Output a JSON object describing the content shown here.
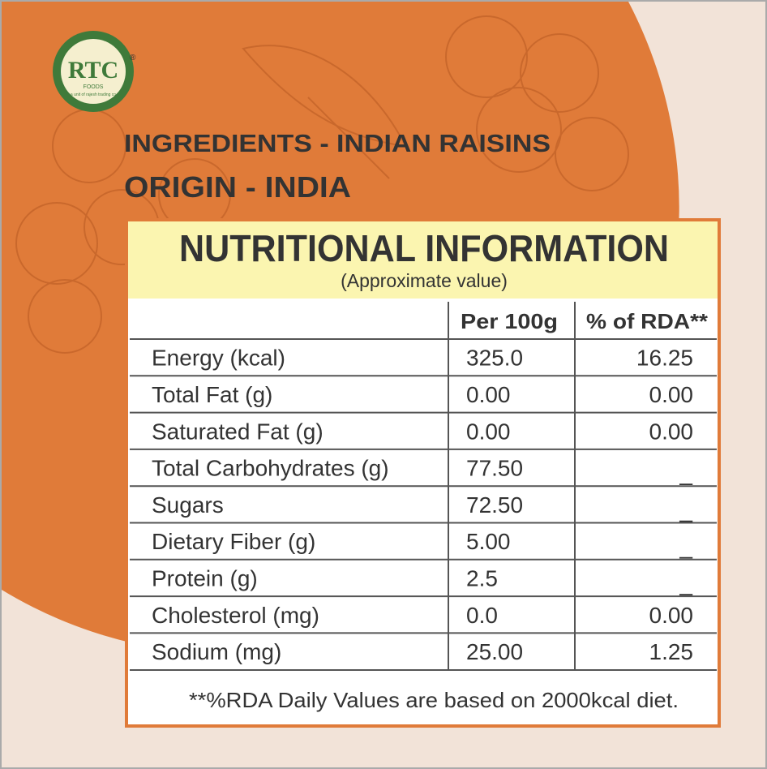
{
  "logo": {
    "brand": "RTC",
    "sub": "FOODS",
    "tagline": "a unit of rajesh trading co",
    "mark": "®"
  },
  "ingredients": "INGREDIENTS - INDIAN RAISINS",
  "origin": "ORIGIN - INDIA",
  "table": {
    "title": "NUTRITIONAL INFORMATION",
    "subtitle": "(Approximate value)",
    "headers": [
      "Per 100g",
      "% of RDA**"
    ],
    "rows": [
      [
        "Energy (kcal)",
        "325.0",
        "16.25"
      ],
      [
        "Total Fat (g)",
        "0.00",
        "0.00"
      ],
      [
        "Saturated Fat (g)",
        "0.00",
        "0.00"
      ],
      [
        "Total Carbohydrates (g)",
        "77.50",
        "_"
      ],
      [
        "Sugars",
        "72.50",
        "_"
      ],
      [
        "Dietary Fiber (g)",
        "5.00",
        "_"
      ],
      [
        "Protein (g)",
        "2.5",
        "_"
      ],
      [
        "Cholesterol (mg)",
        "0.0",
        "0.00"
      ],
      [
        "Sodium (mg)",
        "25.00",
        "1.25"
      ]
    ],
    "footnote": "**%RDA Daily Values are based on 2000kcal diet."
  }
}
